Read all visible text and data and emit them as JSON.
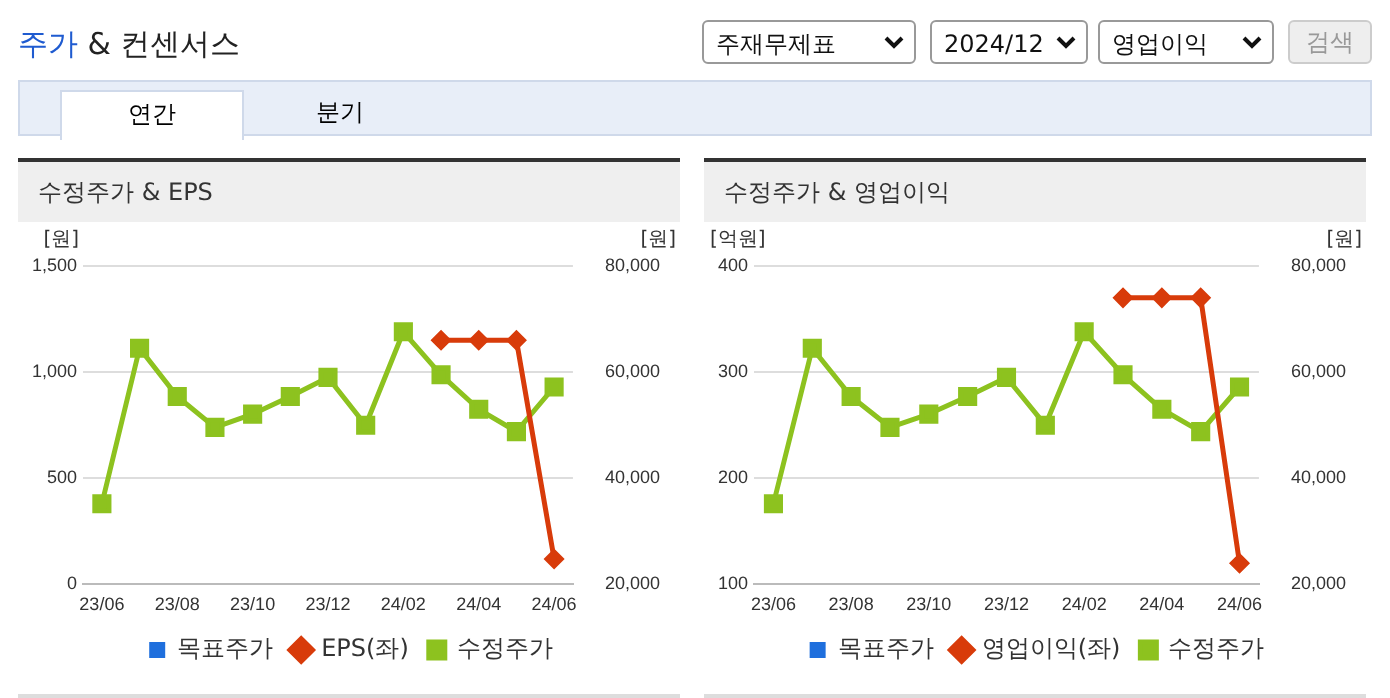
{
  "chart_data": [
    {
      "type": "line",
      "title": "수정주가 & EPS",
      "ylabel": "[원]",
      "y2label": "[원]",
      "annotations": [
        "주가",
        "& 컨센서스",
        "주재무제표",
        "2024/12",
        "영업이익",
        "검색",
        "연간",
        "분기"
      ],
      "categories": [
        "23/06",
        null,
        "23/08",
        null,
        "23/10",
        null,
        "23/12",
        null,
        "24/02",
        null,
        "24/04",
        null,
        "24/06"
      ],
      "series": [
        {
          "name": "목표주가",
          "color": "#1f6fdd",
          "type": "bar",
          "values": [
            null,
            null,
            null,
            null,
            null,
            null,
            null,
            null,
            null,
            null,
            null,
            null,
            null
          ]
        },
        {
          "name": "EPS(좌)",
          "color": "#d83b0a",
          "marker": "diamond",
          "values": [
            null,
            null,
            null,
            null,
            null,
            null,
            null,
            null,
            null,
            1150,
            1150,
            1150,
            120
          ]
        },
        {
          "name": "수정주가",
          "color": "#8dc21f",
          "marker": "square",
          "axis": "y2",
          "values": [
            35200,
            64500,
            55400,
            49600,
            52100,
            55400,
            59000,
            50000,
            67600,
            59500,
            53000,
            48800,
            57200
          ]
        }
      ],
      "ylim": [
        0,
        1500
      ],
      "yticks": [
        0,
        500,
        {
          "value": 1000,
          "label": "1,000"
        },
        {
          "value": 1500,
          "label": "1,500"
        }
      ],
      "y2lim": [
        20000,
        80000
      ],
      "y2ticks": [
        {
          "value": 20000,
          "label": "20,000"
        },
        {
          "value": 40000,
          "label": "40,000"
        },
        {
          "value": 60000,
          "label": "60,000"
        },
        {
          "value": 80000,
          "label": "80,000"
        }
      ],
      "grid": "y",
      "legend": "bottom",
      "line_style": "solid"
    },
    {
      "type": "line",
      "title": "수정주가 & 영업이익",
      "ylabel": "[억원]",
      "y2label": "[원]",
      "categories": [
        "23/06",
        null,
        "23/08",
        null,
        "23/10",
        null,
        "23/12",
        null,
        "24/02",
        null,
        "24/04",
        null,
        "24/06"
      ],
      "series": [
        {
          "name": "목표주가",
          "color": "#1f6fdd",
          "type": "bar",
          "values": [
            null,
            null,
            null,
            null,
            null,
            null,
            null,
            null,
            null,
            null,
            null,
            null,
            null
          ]
        },
        {
          "name": "영업이익(좌)",
          "color": "#d83b0a",
          "marker": "diamond",
          "values": [
            null,
            null,
            null,
            null,
            null,
            null,
            null,
            null,
            null,
            370,
            370,
            370,
            120
          ]
        },
        {
          "name": "수정주가",
          "color": "#8dc21f",
          "marker": "square",
          "axis": "y2",
          "values": [
            35200,
            64500,
            55400,
            49600,
            52100,
            55400,
            59000,
            50000,
            67600,
            59500,
            53000,
            48800,
            57200
          ]
        }
      ],
      "ylim": [
        100,
        400
      ],
      "yticks": [
        100,
        200,
        300,
        400
      ],
      "y2lim": [
        20000,
        80000
      ],
      "y2ticks": [
        {
          "value": 20000,
          "label": "20,000"
        },
        {
          "value": 40000,
          "label": "40,000"
        },
        {
          "value": 60000,
          "label": "60,000"
        },
        {
          "value": 80000,
          "label": "80,000"
        }
      ],
      "grid": "y",
      "legend": "bottom",
      "line_style": "solid"
    }
  ]
}
